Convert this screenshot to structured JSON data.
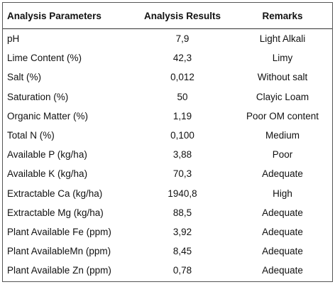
{
  "table": {
    "headers": {
      "parameter": "Analysis Parameters",
      "result": "Analysis Results",
      "remark": "Remarks"
    },
    "rows": [
      {
        "parameter": "pH",
        "result": "7,9",
        "remark": "Light Alkali"
      },
      {
        "parameter": "Lime Content (%)",
        "result": "42,3",
        "remark": "Limy"
      },
      {
        "parameter": "Salt (%)",
        "result": "0,012",
        "remark": "Without salt"
      },
      {
        "parameter": "Saturation (%)",
        "result": "50",
        "remark": "Clayic Loam"
      },
      {
        "parameter": "Organic Matter (%)",
        "result": "1,19",
        "remark": "Poor OM content"
      },
      {
        "parameter": "Total N (%)",
        "result": "0,100",
        "remark": "Medium"
      },
      {
        "parameter": "Available P (kg/ha)",
        "result": "3,88",
        "remark": "Poor"
      },
      {
        "parameter": "Available K (kg/ha)",
        "result": "70,3",
        "remark": "Adequate"
      },
      {
        "parameter": "Extractable Ca (kg/ha)",
        "result": "1940,8",
        "remark": "High"
      },
      {
        "parameter": "Extractable Mg (kg/ha)",
        "result": "88,5",
        "remark": "Adequate"
      },
      {
        "parameter": "Plant Available Fe (ppm)",
        "result": "3,92",
        "remark": "Adequate"
      },
      {
        "parameter": "Plant AvailableMn (ppm)",
        "result": "8,45",
        "remark": "Adequate"
      },
      {
        "parameter": "Plant Available Zn (ppm)",
        "result": "0,78",
        "remark": "Adequate"
      }
    ]
  }
}
